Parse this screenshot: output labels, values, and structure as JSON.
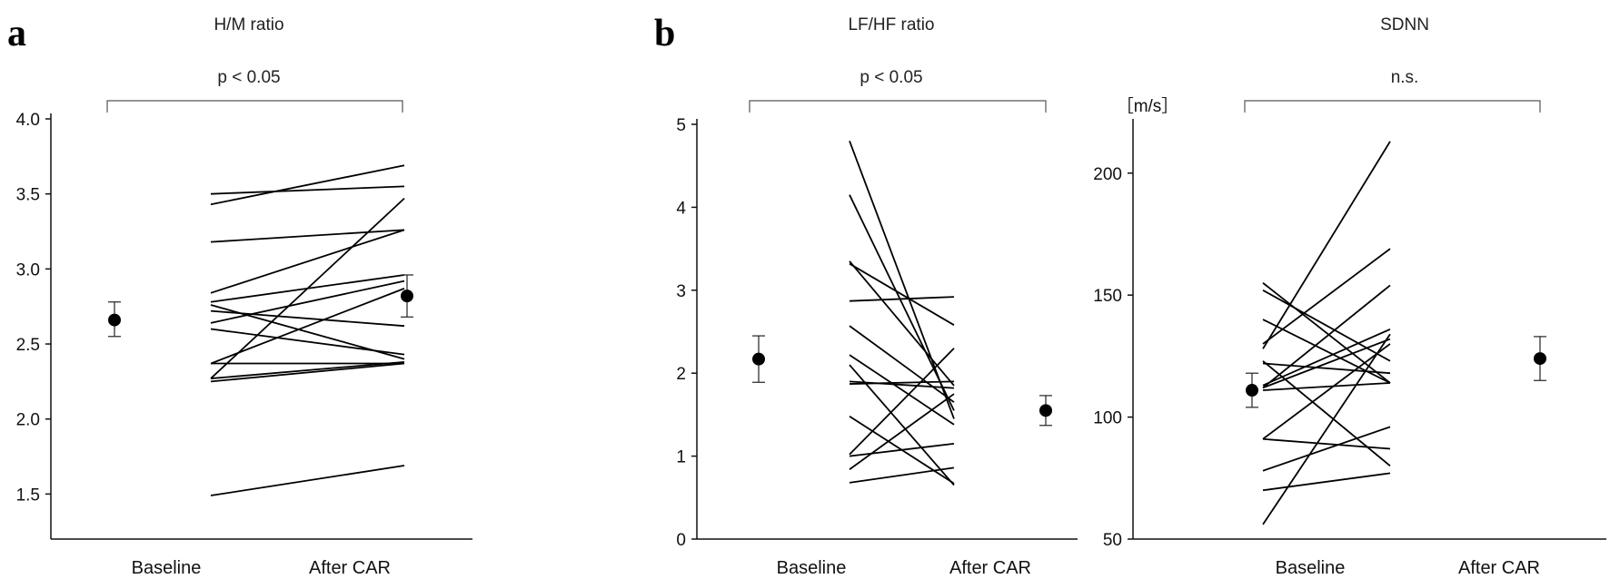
{
  "panel_labels": [
    "a",
    "b"
  ],
  "chart_data": [
    {
      "type": "line",
      "panel": "a",
      "title": "H/M ratio",
      "annotation": "p < 0.05",
      "ylabel": "",
      "categories": [
        "Baseline",
        "After CAR"
      ],
      "ylim": [
        1.2,
        4.0
      ],
      "yticks": [
        1.5,
        2.0,
        2.5,
        3.0,
        3.5,
        4.0
      ],
      "ytick_labels": [
        "1.5",
        "2.0",
        "2.5",
        "3.0",
        "3.5",
        "4.0"
      ],
      "mean": [
        {
          "value": 2.66,
          "err_low": 2.55,
          "err_high": 2.78
        },
        {
          "value": 2.82,
          "err_low": 2.68,
          "err_high": 2.96
        }
      ],
      "pairs": [
        [
          1.49,
          1.69
        ],
        [
          2.25,
          2.37
        ],
        [
          2.27,
          2.38
        ],
        [
          2.37,
          2.37
        ],
        [
          2.37,
          2.87
        ],
        [
          2.6,
          2.43
        ],
        [
          2.64,
          2.92
        ],
        [
          2.72,
          2.62
        ],
        [
          2.76,
          2.4
        ],
        [
          2.78,
          2.96
        ],
        [
          2.84,
          3.26
        ],
        [
          3.18,
          3.26
        ],
        [
          3.43,
          3.69
        ],
        [
          3.5,
          3.55
        ],
        [
          2.27,
          3.47
        ]
      ]
    },
    {
      "type": "line",
      "panel": "b",
      "title": "LF/HF ratio",
      "annotation": "p < 0.05",
      "ylabel": "",
      "categories": [
        "Baseline",
        "After CAR"
      ],
      "ylim": [
        0,
        5
      ],
      "yticks": [
        0,
        1,
        2,
        3,
        4,
        5
      ],
      "ytick_labels": [
        "0",
        "1",
        "2",
        "3",
        "4",
        "5"
      ],
      "mean": [
        {
          "value": 2.17,
          "err_low": 1.89,
          "err_high": 2.45
        },
        {
          "value": 1.55,
          "err_low": 1.37,
          "err_high": 1.73
        }
      ],
      "pairs": [
        [
          4.8,
          1.45
        ],
        [
          4.15,
          1.55
        ],
        [
          3.35,
          1.85
        ],
        [
          3.32,
          2.58
        ],
        [
          2.87,
          2.92
        ],
        [
          2.57,
          1.65
        ],
        [
          2.22,
          1.38
        ],
        [
          2.1,
          0.65
        ],
        [
          1.9,
          1.82
        ],
        [
          1.87,
          1.9
        ],
        [
          1.48,
          0.67
        ],
        [
          1.02,
          2.3
        ],
        [
          1.0,
          1.15
        ],
        [
          0.84,
          1.75
        ],
        [
          0.68,
          0.86
        ]
      ]
    },
    {
      "type": "line",
      "panel": "b",
      "title": "SDNN",
      "annotation": "n.s.",
      "ylabel": "［m/s］",
      "categories": [
        "Baseline",
        "After CAR"
      ],
      "ylim": [
        50,
        220
      ],
      "yticks": [
        50,
        100,
        150,
        200
      ],
      "ytick_labels": [
        "50",
        "100",
        "150",
        "200"
      ],
      "mean": [
        {
          "value": 111,
          "err_low": 104,
          "err_high": 118
        },
        {
          "value": 124,
          "err_low": 115,
          "err_high": 133
        }
      ],
      "pairs": [
        [
          155,
          114
        ],
        [
          152,
          123
        ],
        [
          140,
          114
        ],
        [
          130,
          169
        ],
        [
          128,
          213
        ],
        [
          123,
          80
        ],
        [
          122,
          118
        ],
        [
          113,
          136
        ],
        [
          112,
          132
        ],
        [
          112,
          154
        ],
        [
          111,
          114
        ],
        [
          91,
          87
        ],
        [
          91,
          130
        ],
        [
          78,
          96
        ],
        [
          70,
          77
        ],
        [
          56,
          134
        ]
      ]
    }
  ]
}
